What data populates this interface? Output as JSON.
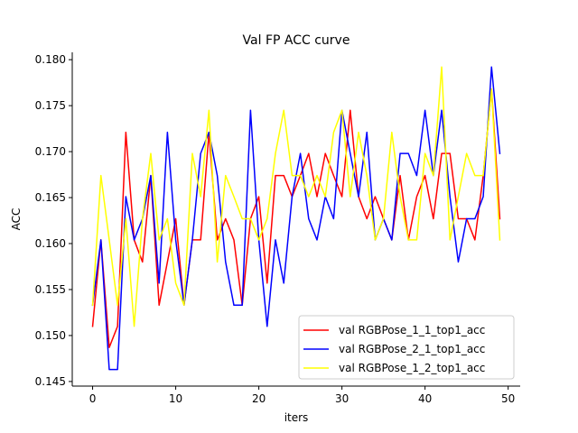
{
  "chart_data": {
    "type": "line",
    "title": "Val FP ACC curve",
    "xlabel": "iters",
    "ylabel": "ACC",
    "xlim": [
      -2.45,
      51.45
    ],
    "ylim": [
      0.1445,
      0.1808
    ],
    "xticks": [
      0,
      10,
      20,
      30,
      40,
      50
    ],
    "yticks": [
      0.145,
      0.15,
      0.155,
      0.16,
      0.165,
      0.17,
      0.175,
      0.18
    ],
    "ytick_labels": [
      "0.145",
      "0.150",
      "0.155",
      "0.160",
      "0.165",
      "0.170",
      "0.175",
      "0.180"
    ],
    "grid": false,
    "legend_position": "lower-right",
    "x": [
      0,
      1,
      2,
      3,
      4,
      5,
      6,
      7,
      8,
      9,
      10,
      11,
      12,
      13,
      14,
      15,
      16,
      17,
      18,
      19,
      20,
      21,
      22,
      23,
      24,
      25,
      26,
      27,
      28,
      29,
      30,
      31,
      32,
      33,
      34,
      35,
      36,
      37,
      38,
      39,
      40,
      41,
      42,
      43,
      44,
      45,
      46,
      47,
      48,
      49
    ],
    "series": [
      {
        "name": "val RGBPose_1_1_top1_acc",
        "color": "#ff0000",
        "values": [
          0.151,
          0.1604,
          0.1487,
          0.151,
          0.1721,
          0.1604,
          0.158,
          0.1674,
          0.1533,
          0.158,
          0.1627,
          0.1533,
          0.1604,
          0.1604,
          0.1721,
          0.1604,
          0.1627,
          0.1604,
          0.1533,
          0.1627,
          0.1651,
          0.1557,
          0.1674,
          0.1674,
          0.1651,
          0.1674,
          0.1698,
          0.1651,
          0.1698,
          0.1674,
          0.1651,
          0.1745,
          0.1651,
          0.1627,
          0.1651,
          0.1627,
          0.1604,
          0.1674,
          0.1604,
          0.1651,
          0.1674,
          0.1627,
          0.1698,
          0.1698,
          0.1627,
          0.1627,
          0.1604,
          0.1674,
          0.1768,
          0.1627
        ]
      },
      {
        "name": "val RGBPose_2_1_top1_acc",
        "color": "#0000ff",
        "values": [
          0.1533,
          0.1604,
          0.1463,
          0.1463,
          0.1651,
          0.1604,
          0.1627,
          0.1674,
          0.1557,
          0.1721,
          0.1604,
          0.1533,
          0.1604,
          0.1698,
          0.1721,
          0.1674,
          0.158,
          0.1533,
          0.1533,
          0.1745,
          0.1604,
          0.151,
          0.1604,
          0.1557,
          0.1651,
          0.1698,
          0.1627,
          0.1604,
          0.1651,
          0.1627,
          0.1745,
          0.1698,
          0.1651,
          0.1721,
          0.1604,
          0.1627,
          0.1604,
          0.1698,
          0.1698,
          0.1674,
          0.1745,
          0.1674,
          0.1745,
          0.1651,
          0.158,
          0.1627,
          0.1627,
          0.1651,
          0.1792,
          0.1698
        ]
      },
      {
        "name": "val RGBPose_1_2_top1_acc",
        "color": "#ffff00",
        "values": [
          0.1533,
          0.1674,
          0.1604,
          0.1533,
          0.1627,
          0.151,
          0.1627,
          0.1698,
          0.1604,
          0.1627,
          0.1557,
          0.1533,
          0.1698,
          0.1651,
          0.1745,
          0.158,
          0.1674,
          0.1651,
          0.1627,
          0.1627,
          0.1604,
          0.1627,
          0.1698,
          0.1745,
          0.1674,
          0.1674,
          0.1651,
          0.1674,
          0.1651,
          0.1721,
          0.1745,
          0.1651,
          0.1721,
          0.1674,
          0.1604,
          0.1627,
          0.1721,
          0.1651,
          0.1604,
          0.1604,
          0.1698,
          0.1674,
          0.1792,
          0.1604,
          0.1651,
          0.1698,
          0.1674,
          0.1674,
          0.1768,
          0.1604
        ]
      }
    ]
  }
}
